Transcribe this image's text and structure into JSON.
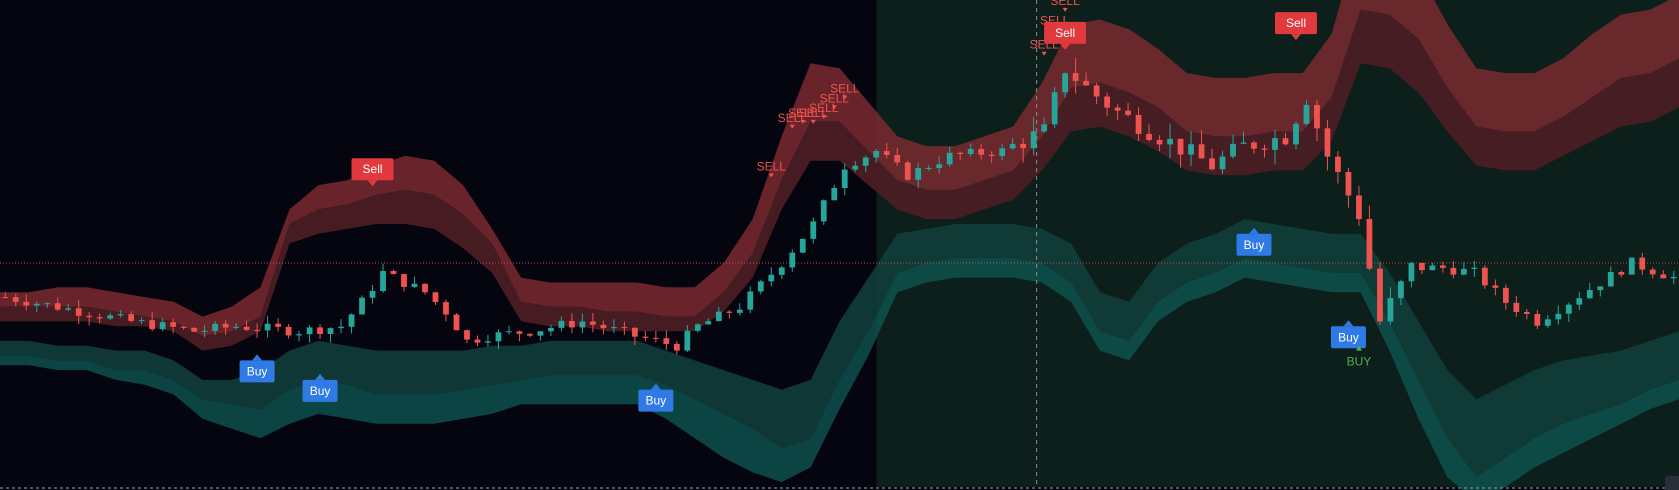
{
  "colors": {
    "background": "#05050f",
    "highlight_zone": "#0c1f1a",
    "candle_up": "#26a69a",
    "candle_down": "#ef5350",
    "upper_band_outer": "#7a2a2f",
    "upper_band_inner": "#4a1e24",
    "lower_band_inner": "#0f3d3a",
    "lower_band_outer": "#0e5a54",
    "sell_marker": "#e0393e",
    "buy_marker": "#2f7ae5",
    "sell_text": "#ef5350",
    "buy_text": "#4caf50",
    "price_line": "#ef5350",
    "crosshair": "#8a8f99"
  },
  "chart_data": {
    "type": "candlestick",
    "title": "",
    "xlabel": "",
    "ylabel": "",
    "grid": false,
    "legend": "none",
    "ylim": [
      0,
      100
    ],
    "candle_count": 160,
    "indicator_bands": {
      "upper_outer_top": [
        40,
        40,
        41,
        41,
        40,
        39,
        38,
        35,
        37,
        41,
        57,
        62,
        63,
        66,
        68,
        67,
        62,
        53,
        43,
        42,
        42,
        42,
        42,
        41,
        41,
        46,
        55,
        72,
        87,
        86,
        79,
        72,
        70,
        70,
        72,
        74,
        83,
        95,
        96,
        94,
        90,
        85,
        84,
        84,
        85,
        85,
        93,
        114,
        113,
        106,
        95,
        86,
        85,
        85,
        88,
        93,
        97,
        98,
        101
      ],
      "upper_outer_bottom": [
        37,
        37,
        37,
        37,
        36,
        35,
        34,
        31,
        32,
        35,
        54,
        57,
        58,
        60,
        61,
        60,
        56,
        50,
        38,
        37,
        37,
        36,
        36,
        35,
        35,
        40,
        48,
        63,
        75,
        75,
        69,
        63,
        61,
        61,
        63,
        65,
        72,
        82,
        83,
        81,
        78,
        73,
        72,
        72,
        73,
        73,
        80,
        98,
        97,
        92,
        82,
        74,
        73,
        73,
        76,
        80,
        84,
        85,
        88
      ],
      "upper_inner_bottom": [
        34,
        34,
        34,
        34,
        33,
        33,
        32,
        28,
        29,
        32,
        50,
        52,
        53,
        54,
        54,
        53,
        49,
        44,
        34,
        33,
        33,
        32,
        32,
        32,
        32,
        36,
        43,
        57,
        67,
        67,
        62,
        57,
        55,
        55,
        57,
        59,
        65,
        73,
        74,
        72,
        69,
        65,
        64,
        64,
        65,
        65,
        71,
        87,
        86,
        81,
        73,
        66,
        65,
        65,
        68,
        71,
        74,
        75,
        78
      ],
      "lower_inner_top": [
        30,
        30,
        29,
        29,
        28,
        28,
        26,
        22,
        22,
        24,
        28,
        30,
        29,
        28,
        28,
        28,
        28,
        29,
        29,
        30,
        30,
        30,
        30,
        28,
        26,
        24,
        22,
        20,
        22,
        34,
        43,
        52,
        53,
        54,
        54,
        54,
        53,
        50,
        40,
        38,
        46,
        50,
        52,
        55,
        54,
        53,
        52,
        52,
        44,
        34,
        24,
        18,
        21,
        24,
        26,
        27,
        28,
        30,
        32
      ],
      "lower_inner_bottom": [
        27,
        27,
        26,
        26,
        24,
        24,
        22,
        18,
        17,
        16,
        20,
        22,
        21,
        19,
        19,
        19,
        20,
        21,
        22,
        23,
        23,
        23,
        23,
        21,
        18,
        15,
        12,
        8,
        10,
        22,
        32,
        44,
        46,
        47,
        47,
        47,
        46,
        42,
        32,
        30,
        38,
        42,
        44,
        47,
        46,
        45,
        44,
        44,
        34,
        22,
        10,
        2,
        6,
        10,
        13,
        15,
        17,
        20,
        22
      ],
      "lower_outer_bottom": [
        25,
        25,
        24,
        24,
        22,
        21,
        19,
        14,
        12,
        10,
        13,
        15,
        14,
        13,
        13,
        13,
        14,
        15,
        17,
        17,
        17,
        17,
        17,
        14,
        10,
        6,
        3,
        1,
        4,
        16,
        27,
        40,
        42,
        43,
        43,
        43,
        42,
        38,
        28,
        26,
        34,
        38,
        40,
        43,
        42,
        41,
        40,
        40,
        28,
        14,
        2,
        -3,
        0,
        4,
        7,
        10,
        13,
        16,
        18
      ]
    },
    "price_line_y": 46,
    "crosshair_x_index": 98,
    "highlight_zone_start_index": 82,
    "signals": [
      {
        "label": "Sell",
        "kind": "sell-box",
        "index": 35,
        "y": 63
      },
      {
        "label": "Buy",
        "kind": "buy-box",
        "index": 24,
        "y": 26
      },
      {
        "label": "Buy",
        "kind": "buy-box",
        "index": 30,
        "y": 22
      },
      {
        "label": "Buy",
        "kind": "buy-box",
        "index": 62,
        "y": 20
      },
      {
        "label": "SELL",
        "kind": "sell-text",
        "index": 73,
        "y": 65
      },
      {
        "label": "SELL",
        "kind": "sell-text",
        "index": 75,
        "y": 75
      },
      {
        "label": "SELL",
        "kind": "sell-text",
        "index": 76,
        "y": 76
      },
      {
        "label": "SELL",
        "kind": "sell-text",
        "index": 77,
        "y": 76
      },
      {
        "label": "SELL",
        "kind": "sell-text",
        "index": 78,
        "y": 77
      },
      {
        "label": "SELL",
        "kind": "sell-text",
        "index": 79,
        "y": 79
      },
      {
        "label": "SELL",
        "kind": "sell-text",
        "index": 80,
        "y": 81
      },
      {
        "label": "SELL",
        "kind": "sell-text",
        "index": 99,
        "y": 90
      },
      {
        "label": "SELL",
        "kind": "sell-text",
        "index": 100,
        "y": 95
      },
      {
        "label": "SELL",
        "kind": "sell-text",
        "index": 101,
        "y": 99
      },
      {
        "label": "Sell",
        "kind": "sell-box",
        "index": 101,
        "y": 91
      },
      {
        "label": "Sell",
        "kind": "sell-box",
        "index": 123,
        "y": 93
      },
      {
        "label": "Buy",
        "kind": "buy-box",
        "index": 119,
        "y": 52
      },
      {
        "label": "Buy",
        "kind": "buy-box",
        "index": 128,
        "y": 33
      },
      {
        "label": "BUY",
        "kind": "buy-text",
        "index": 129,
        "y": 28
      }
    ]
  }
}
